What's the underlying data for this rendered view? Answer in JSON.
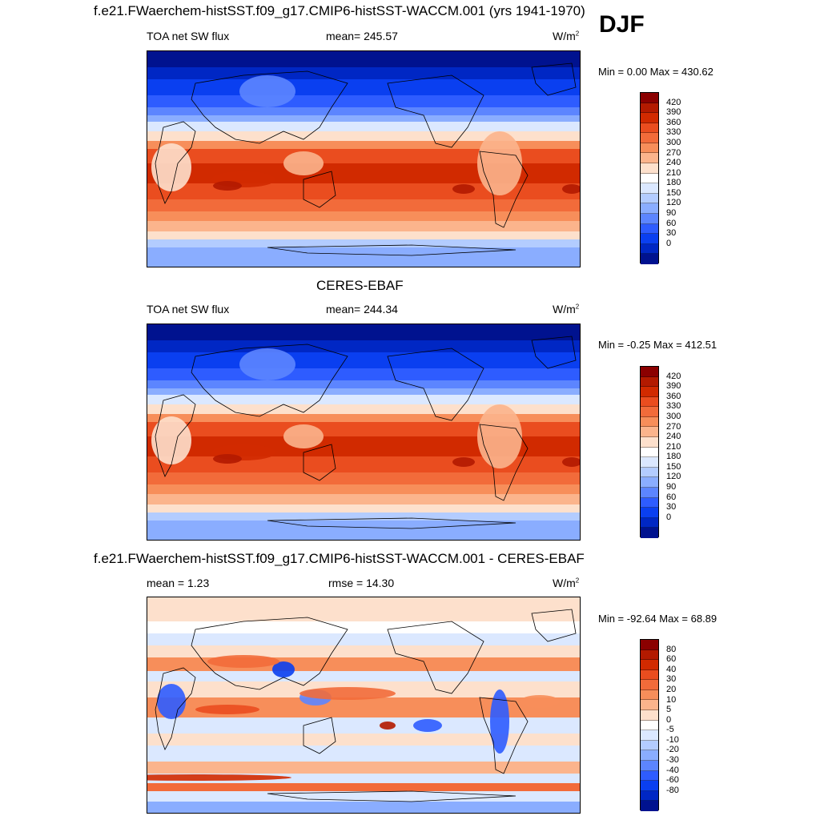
{
  "season": "DJF",
  "panels": [
    {
      "title": "f.e21.FWaerchem-histSST.f09_g17.CMIP6-histSST-WACCM.001 (yrs 1941-1970)",
      "left_label": "TOA net SW flux",
      "center_label": "mean= 245.57",
      "units": "W/m",
      "units_sup": "2",
      "minmax": "Min =   0.00 Max = 430.62",
      "kind": "model",
      "colorbar": {
        "ticks": [
          "420",
          "390",
          "360",
          "330",
          "300",
          "270",
          "240",
          "210",
          "180",
          "150",
          "120",
          "90",
          "60",
          "30",
          "0"
        ],
        "colors": [
          "#8b0000",
          "#b31a00",
          "#d12a00",
          "#ea4d1f",
          "#f26b3a",
          "#f78e5a",
          "#fbb48c",
          "#fde0cc",
          "#ffffff",
          "#dbe8ff",
          "#b3ccff",
          "#8aadff",
          "#5c85ff",
          "#2e5cff",
          "#0a3ff0",
          "#0027c4",
          "#00128f"
        ]
      }
    },
    {
      "title": "CERES-EBAF",
      "left_label": "TOA net SW flux",
      "center_label": "mean= 244.34",
      "units": "W/m",
      "units_sup": "2",
      "minmax": "Min =  -0.25 Max = 412.51",
      "kind": "obs",
      "colorbar": {
        "ticks": [
          "420",
          "390",
          "360",
          "330",
          "300",
          "270",
          "240",
          "210",
          "180",
          "150",
          "120",
          "90",
          "60",
          "30",
          "0"
        ],
        "colors": [
          "#8b0000",
          "#b31a00",
          "#d12a00",
          "#ea4d1f",
          "#f26b3a",
          "#f78e5a",
          "#fbb48c",
          "#fde0cc",
          "#ffffff",
          "#dbe8ff",
          "#b3ccff",
          "#8aadff",
          "#5c85ff",
          "#2e5cff",
          "#0a3ff0",
          "#0027c4",
          "#00128f"
        ]
      }
    },
    {
      "title": "f.e21.FWaerchem-histSST.f09_g17.CMIP6-histSST-WACCM.001 - CERES-EBAF",
      "left_label": "mean =   1.23",
      "center_label": "rmse =  14.30",
      "units": "W/m",
      "units_sup": "2",
      "minmax": "Min = -92.64 Max =  68.89",
      "kind": "diff",
      "colorbar": {
        "ticks": [
          "80",
          "60",
          "40",
          "30",
          "20",
          "10",
          "5",
          "0",
          "-5",
          "-10",
          "-20",
          "-30",
          "-40",
          "-60",
          "-80"
        ],
        "colors": [
          "#8b0000",
          "#b31a00",
          "#d12a00",
          "#ea4d1f",
          "#f26b3a",
          "#f78e5a",
          "#fbb48c",
          "#fde0cc",
          "#ffffff",
          "#dbe8ff",
          "#b3ccff",
          "#8aadff",
          "#5c85ff",
          "#2e5cff",
          "#0a3ff0",
          "#0027c4",
          "#00128f"
        ]
      }
    }
  ]
}
